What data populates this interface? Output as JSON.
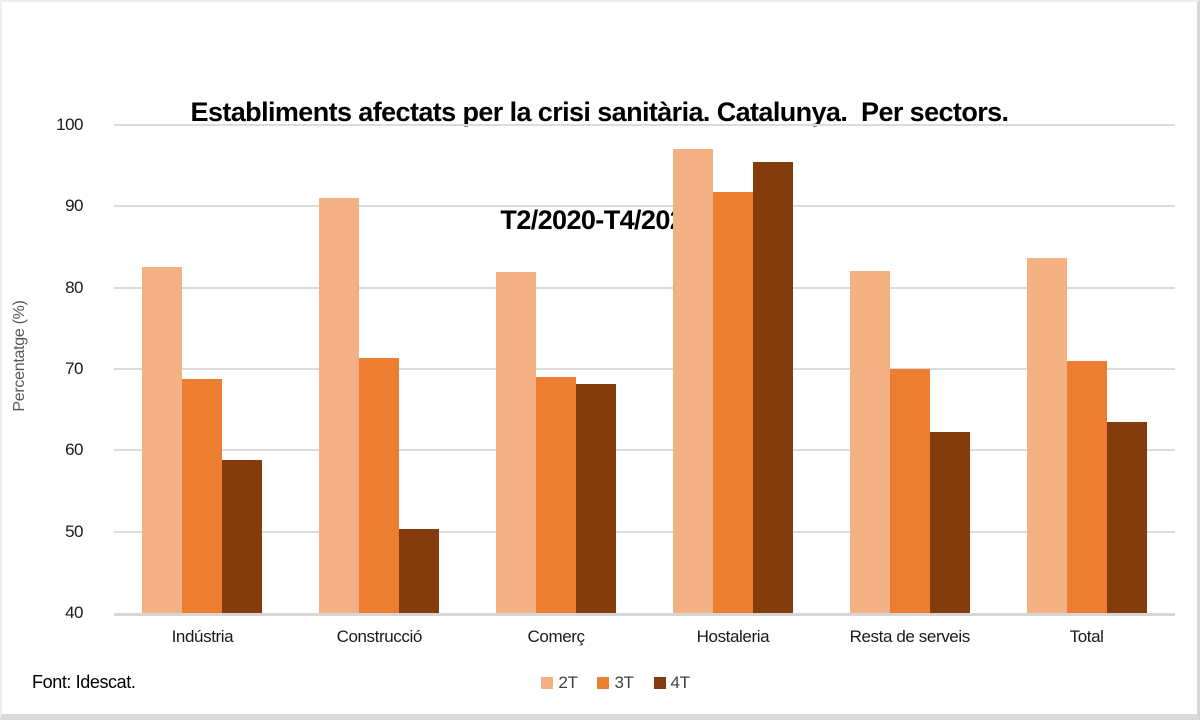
{
  "title": {
    "line1": "Establiments afectats per la crisi sanitària. Catalunya.  Per sectors.",
    "line2": "T2/2020-T4/2020"
  },
  "footer": "Font: Idescat.",
  "colors": {
    "series_2T": "#F4B183",
    "series_3T": "#ED7D31",
    "series_4T": "#843C0C",
    "gridline": "#dcdcdc",
    "axis_text": "#1a1a1a",
    "y_axis_title_text": "#595959"
  },
  "chart_data": {
    "type": "bar",
    "title": "Establiments afectats per la crisi sanitària. Catalunya. Per sectors. T2/2020-T4/2020",
    "categories": [
      "Indústria",
      "Construcció",
      "Comerç",
      "Hostaleria",
      "Resta de serveis",
      "Total"
    ],
    "series": [
      {
        "name": "2T",
        "color": "#F4B183",
        "values": [
          82.6,
          91.0,
          81.9,
          97.1,
          82.1,
          83.6
        ]
      },
      {
        "name": "3T",
        "color": "#ED7D31",
        "values": [
          68.8,
          71.3,
          69.0,
          91.8,
          70.0,
          71.0
        ]
      },
      {
        "name": "4T",
        "color": "#843C0C",
        "values": [
          58.8,
          50.3,
          68.1,
          95.4,
          62.3,
          63.5
        ]
      }
    ],
    "xlabel": "",
    "ylabel": "Percentatge (%)",
    "ylim": [
      40,
      100
    ],
    "yticks": [
      40,
      50,
      60,
      70,
      80,
      90,
      100
    ],
    "grid": true,
    "legend_position": "bottom",
    "source": "Font: Idescat."
  }
}
